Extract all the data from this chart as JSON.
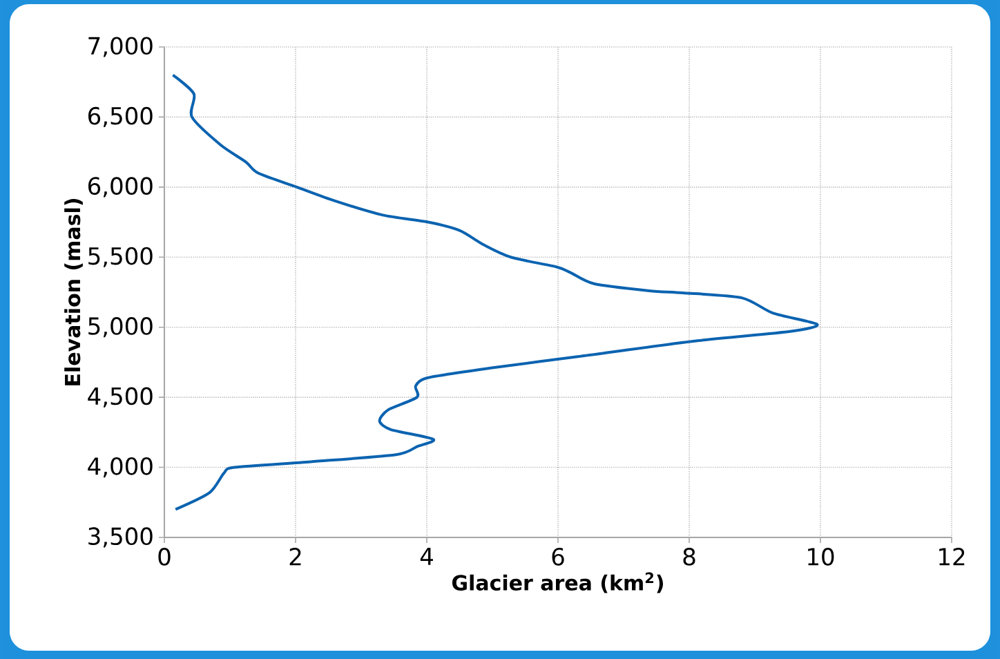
{
  "chart_data": {
    "type": "line",
    "xlabel": "Glacier area (km$^{2}$)",
    "ylabel": "Elevation (masl)",
    "xlim": [
      0,
      12
    ],
    "ylim": [
      3500,
      7000
    ],
    "xticks": [
      0,
      2,
      4,
      6,
      8,
      10,
      12
    ],
    "yticks": [
      {
        "value": 3500,
        "label": "3,500"
      },
      {
        "value": 4000,
        "label": "4,000"
      },
      {
        "value": 4500,
        "label": "4,500"
      },
      {
        "value": 5000,
        "label": "5,000"
      },
      {
        "value": 5500,
        "label": "5,500"
      },
      {
        "value": 6000,
        "label": "6,000"
      },
      {
        "value": 6500,
        "label": "6,500"
      },
      {
        "value": 7000,
        "label": "7,000"
      }
    ],
    "grid": true,
    "series": [
      {
        "color": "#0b63b0",
        "x": [
          0.13,
          0.45,
          0.42,
          0.86,
          1.24,
          1.43,
          2.02,
          2.61,
          3.33,
          4.02,
          4.5,
          4.86,
          5.28,
          5.98,
          6.19,
          6.55,
          7.39,
          7.9,
          8.8,
          9.28,
          9.95,
          9.54,
          8.06,
          6.3,
          4.99,
          4.02,
          3.83,
          3.85,
          3.41,
          3.28,
          3.45,
          4.1,
          3.86,
          3.53,
          2.23,
          1.07,
          0.91,
          0.69,
          0.17
        ],
        "values": [
          6800,
          6665,
          6500,
          6300,
          6180,
          6100,
          6000,
          5900,
          5800,
          5750,
          5690,
          5590,
          5500,
          5430,
          5390,
          5310,
          5260,
          5245,
          5210,
          5100,
          5020,
          4970,
          4900,
          4790,
          4710,
          4640,
          4580,
          4500,
          4410,
          4330,
          4270,
          4200,
          4150,
          4090,
          4040,
          4000,
          3960,
          3820,
          3700
        ]
      }
    ]
  }
}
